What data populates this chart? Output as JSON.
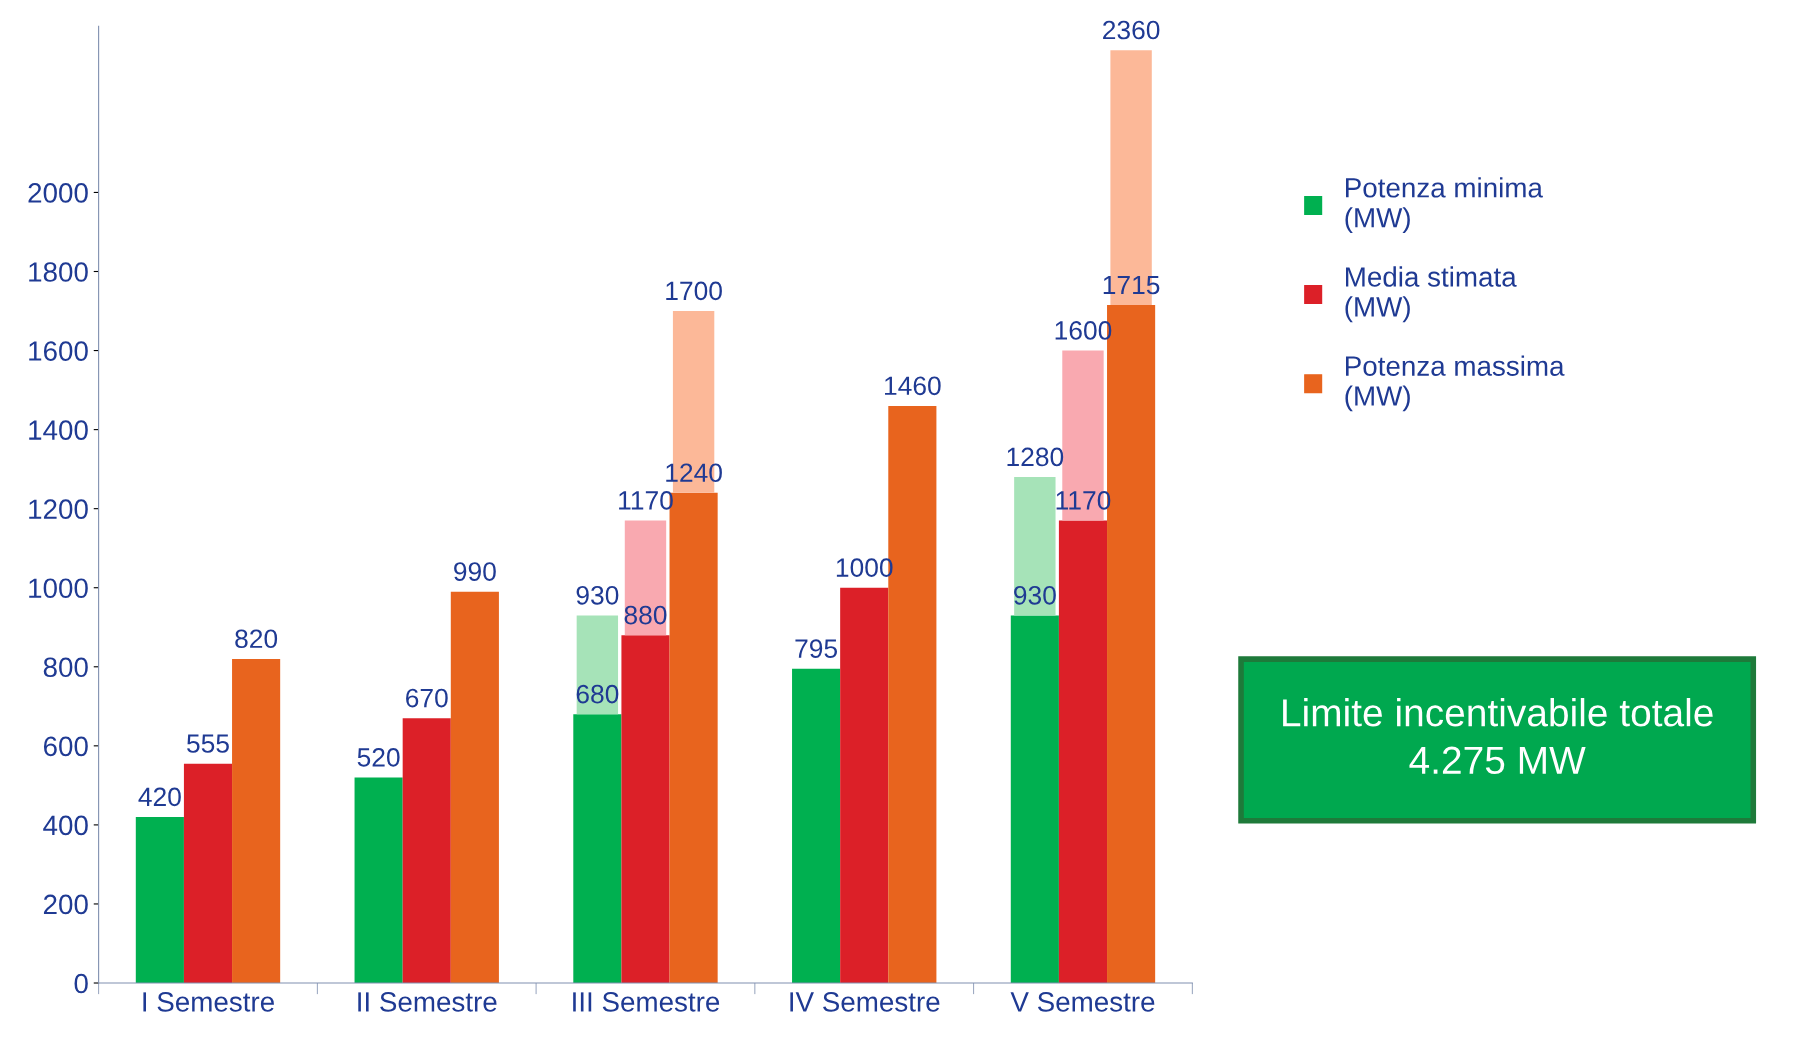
{
  "chart_data": {
    "type": "bar",
    "categories": [
      "I Semestre",
      "II Semestre",
      "III Semestre",
      "IV Semestre",
      "V Semestre"
    ],
    "series": [
      {
        "name": "Potenza minima\n(MW)",
        "color": "#00b050",
        "values": [
          420,
          520,
          680,
          795,
          930
        ]
      },
      {
        "name": "Media stimata\n(MW)",
        "color": "#dc2028",
        "values": [
          555,
          670,
          880,
          1000,
          1170
        ]
      },
      {
        "name": "Potenza massima\n(MW)",
        "color": "#e8641e",
        "values": [
          820,
          990,
          1240,
          1460,
          1715
        ]
      },
      {
        "color": "#a6e3b8",
        "base": [
          null,
          null,
          680,
          null,
          930
        ],
        "values": [
          null,
          null,
          250,
          null,
          350
        ],
        "value_labels": [
          null,
          null,
          "930",
          null,
          "1280"
        ]
      },
      {
        "color": "#f9a9b0",
        "base": [
          null,
          null,
          880,
          null,
          1170
        ],
        "values": [
          null,
          null,
          290,
          null,
          430
        ],
        "value_labels": [
          null,
          null,
          "1170",
          null,
          "1600"
        ]
      },
      {
        "color": "#fcb898",
        "base": [
          null,
          null,
          1240,
          null,
          1715
        ],
        "values": [
          null,
          null,
          460,
          null,
          645
        ],
        "value_labels": [
          null,
          null,
          "1700",
          null,
          "2360"
        ]
      }
    ],
    "data_labels": true,
    "ylim": [
      0,
      2420
    ],
    "yticks": [
      0,
      200,
      400,
      600,
      800,
      1000,
      1200,
      1400,
      1600,
      1800,
      2000
    ],
    "grid": false,
    "legend": "right",
    "annotations": [
      "Limite incentivabile totale\n4.275 MW"
    ]
  }
}
